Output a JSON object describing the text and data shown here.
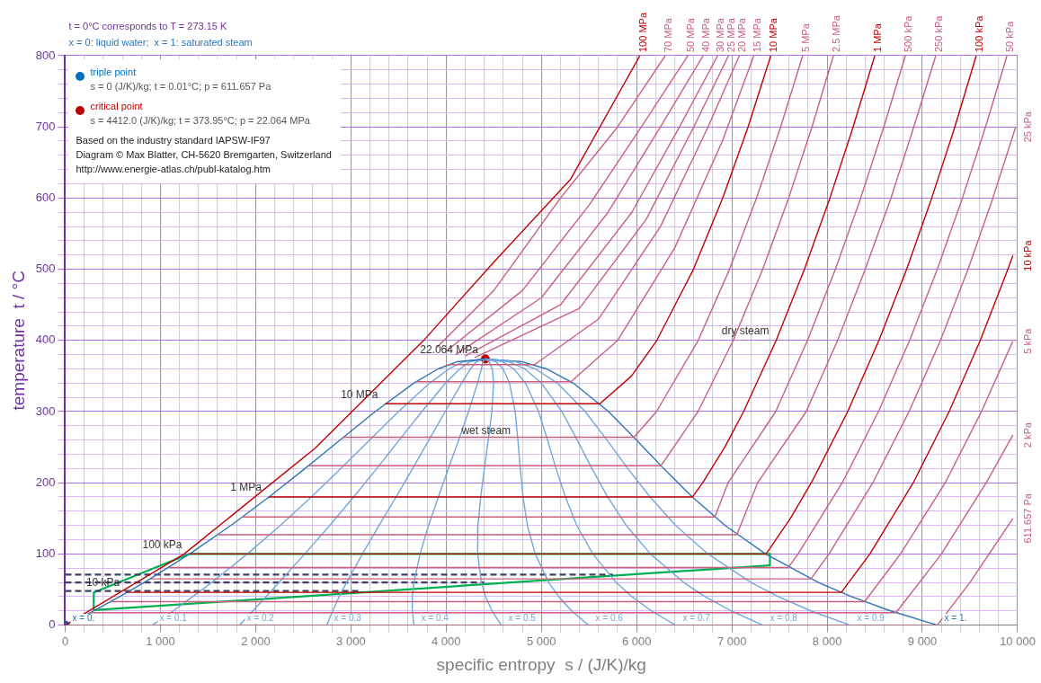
{
  "chart_data": {
    "type": "line",
    "xlabel": "specific entropy  s / (J/K)/kg",
    "ylabel": "temperature  t / °C",
    "xlim": [
      0,
      10000
    ],
    "ylim": [
      0,
      800
    ],
    "xticks": [
      0,
      {
        "value": 200,
        "label": null
      },
      {
        "value": 400,
        "label": null
      },
      {
        "value": 600,
        "label": null
      },
      {
        "value": 800,
        "label": null
      },
      {
        "value": 1000,
        "label": "1 000"
      },
      {
        "value": 1200,
        "label": null
      },
      {
        "value": 1400,
        "label": null
      },
      {
        "value": 1600,
        "label": null
      },
      {
        "value": 1800,
        "label": null
      },
      {
        "value": 2000,
        "label": "2 000"
      },
      {
        "value": 2200,
        "label": null
      },
      {
        "value": 2400,
        "label": null
      },
      {
        "value": 2600,
        "label": null
      },
      {
        "value": 2800,
        "label": null
      },
      {
        "value": 3000,
        "label": "3 000"
      },
      {
        "value": 3200,
        "label": null
      },
      {
        "value": 3400,
        "label": null
      },
      {
        "value": 3600,
        "label": null
      },
      {
        "value": 3800,
        "label": null
      },
      {
        "value": 4000,
        "label": "4 000"
      },
      {
        "value": 4200,
        "label": null
      },
      {
        "value": 4400,
        "label": null
      },
      {
        "value": 4600,
        "label": null
      },
      {
        "value": 4800,
        "label": null
      },
      {
        "value": 5000,
        "label": "5 000"
      },
      {
        "value": 5200,
        "label": null
      },
      {
        "value": 5400,
        "label": null
      },
      {
        "value": 5600,
        "label": null
      },
      {
        "value": 5800,
        "label": null
      },
      {
        "value": 6000,
        "label": "6 000"
      },
      {
        "value": 6200,
        "label": null
      },
      {
        "value": 6400,
        "label": null
      },
      {
        "value": 6600,
        "label": null
      },
      {
        "value": 6800,
        "label": null
      },
      {
        "value": 7000,
        "label": "7 000"
      },
      {
        "value": 7200,
        "label": null
      },
      {
        "value": 7400,
        "label": null
      },
      {
        "value": 7600,
        "label": null
      },
      {
        "value": 7800,
        "label": null
      },
      {
        "value": 8000,
        "label": "8 000"
      },
      {
        "value": 8200,
        "label": null
      },
      {
        "value": 8400,
        "label": null
      },
      {
        "value": 8600,
        "label": null
      },
      {
        "value": 8800,
        "label": null
      },
      {
        "value": 9000,
        "label": "9 000"
      },
      {
        "value": 9200,
        "label": null
      },
      {
        "value": 9400,
        "label": null
      },
      {
        "value": 9600,
        "label": null
      },
      {
        "value": 9800,
        "label": null
      },
      {
        "value": 10000,
        "label": "10 000"
      }
    ],
    "yticks": [
      0,
      {
        "value": 20,
        "label": null
      },
      {
        "value": 40,
        "label": null
      },
      {
        "value": 60,
        "label": null
      },
      {
        "value": 80,
        "label": null
      },
      100,
      {
        "value": 120,
        "label": null
      },
      {
        "value": 140,
        "label": null
      },
      {
        "value": 160,
        "label": null
      },
      {
        "value": 180,
        "label": null
      },
      200,
      {
        "value": 220,
        "label": null
      },
      {
        "value": 240,
        "label": null
      },
      {
        "value": 260,
        "label": null
      },
      {
        "value": 280,
        "label": null
      },
      300,
      {
        "value": 320,
        "label": null
      },
      {
        "value": 340,
        "label": null
      },
      {
        "value": 360,
        "label": null
      },
      {
        "value": 380,
        "label": null
      },
      400,
      {
        "value": 420,
        "label": null
      },
      {
        "value": 440,
        "label": null
      },
      {
        "value": 460,
        "label": null
      },
      {
        "value": 480,
        "label": null
      },
      500,
      {
        "value": 520,
        "label": null
      },
      {
        "value": 540,
        "label": null
      },
      {
        "value": 560,
        "label": null
      },
      {
        "value": 580,
        "label": null
      },
      600,
      {
        "value": 620,
        "label": null
      },
      {
        "value": 640,
        "label": null
      },
      {
        "value": 660,
        "label": null
      },
      {
        "value": 680,
        "label": null
      },
      700,
      {
        "value": 720,
        "label": null
      },
      {
        "value": 740,
        "label": null
      },
      {
        "value": 760,
        "label": null
      },
      {
        "value": 780,
        "label": null
      },
      800
    ],
    "grid": true,
    "legend": "top left",
    "annotations": [
      "t = 0°C corresponds to T = 273.15 K",
      "x = 0: liquid water;  x = 1: saturated steam",
      "s = 0 (J/K)/kg;  t = 0.01°C;  p = 611.657 Pa",
      "s = 4412.0 (J/K)/kg;  t = 373.95°C;  p = 22.064 MPa",
      "Based on the industry standard IAPSW-IF97",
      "Diagram © Max Blatter, CH-5620 Bremgarten, Switzerland",
      "http://www.energie-atlas.ch/publ-katalog.htm",
      {
        "text": "22.064 MPa",
        "x": 4412,
        "y": 373.95
      },
      {
        "text": "10 MPa",
        "x": 3360,
        "y": 311
      },
      {
        "text": "1 MPa",
        "x": 2138,
        "y": 180
      },
      {
        "text": "100 kPa",
        "x": 1303,
        "y": 100
      },
      {
        "text": "10 kPa",
        "x": 649,
        "y": 46
      },
      {
        "text": "wet steam",
        "x": 4753,
        "y": 260
      },
      {
        "text": "dry steam",
        "x": 7465,
        "y": 400
      }
    ],
    "series": [
      {
        "name": "100 MPa",
        "color": "#c00000",
        "x": [
          0,
          1250,
          2619,
          3757,
          4500,
          5304,
          6034
        ],
        "values": [
          0,
          100,
          248,
          399,
          510,
          626,
          800
        ]
      },
      {
        "name": "70 MPa",
        "color": "#c8607a",
        "x": [
          3900,
          4500,
          5200,
          5800,
          6300
        ],
        "values": [
          390,
          470,
          600,
          700,
          800
        ]
      },
      {
        "name": "50 MPa",
        "color": "#c8607a",
        "x": [
          4000,
          4800,
          5500,
          6050,
          6537
        ],
        "values": [
          385,
          470,
          590,
          700,
          800
        ]
      },
      {
        "name": "40 MPa",
        "color": "#c8607a",
        "x": [
          4100,
          5000,
          5700,
          6250,
          6698
        ],
        "values": [
          380,
          460,
          580,
          700,
          800
        ]
      },
      {
        "name": "30 MPa",
        "color": "#c8607a",
        "x": [
          4200,
          5200,
          5950,
          6450,
          6850
        ],
        "values": [
          378,
          450,
          580,
          700,
          800
        ]
      },
      {
        "name": "25 MPa",
        "color": "#c8607a",
        "x": [
          4300,
          5400,
          6100,
          6600,
          6964
        ],
        "values": [
          376,
          445,
          570,
          700,
          800
        ]
      },
      {
        "name": "20 MPa",
        "color": "#c8607a",
        "x": [
          4015,
          4928,
          5600,
          6250,
          6750,
          7078
        ],
        "values": [
          366,
          366,
          430,
          560,
          700,
          800
        ]
      },
      {
        "name": "15 MPa",
        "color": "#c8607a",
        "x": [
          3684,
          5310,
          5800,
          6400,
          6900,
          7230
        ],
        "values": [
          342,
          342,
          400,
          530,
          680,
          800
        ]
      },
      {
        "name": "10 MPa",
        "color": "#c00000",
        "x": [
          3360,
          5614,
          5946,
          6212,
          6597,
          6903,
          7170,
          7408
        ],
        "values": [
          311,
          311,
          350,
          400,
          500,
          600,
          700,
          800
        ]
      },
      {
        "name": "5 MPa",
        "color": "#c8607a",
        "x": [
          2921,
          5973,
          6208,
          6646,
          6976,
          7258,
          7512,
          7743
        ],
        "values": [
          264,
          264,
          300,
          400,
          500,
          600,
          700,
          800
        ]
      },
      {
        "name": "2.5 MPa",
        "color": "#c8607a",
        "x": [
          2554,
          6256,
          6644,
          7014,
          7324,
          7596,
          7841,
          8066
        ],
        "values": [
          224,
          224,
          300,
          400,
          500,
          600,
          700,
          800
        ]
      },
      {
        "name": "1 MPa",
        "color": "#c00000",
        "x": [
          2138,
          6585,
          6694,
          6925,
          7123,
          7465,
          7762,
          8029,
          8273,
          8500
        ],
        "values": [
          180,
          180,
          200,
          250,
          300,
          400,
          500,
          600,
          700,
          800
        ]
      },
      {
        "name": "500 kPa",
        "color": "#c8607a",
        "x": [
          1861,
          6821,
          6960,
          7460,
          7794,
          8087,
          8352,
          8595,
          8821
        ],
        "values": [
          152,
          152,
          200,
          300,
          400,
          500,
          600,
          700,
          800
        ]
      },
      {
        "name": "250 kPa",
        "color": "#c8607a",
        "x": [
          1607,
          7052,
          7270,
          7780,
          8110,
          8400,
          8670,
          8910,
          9140
        ],
        "values": [
          127,
          127,
          200,
          300,
          400,
          500,
          600,
          700,
          800
        ]
      },
      {
        "name": "100 kPa",
        "color": "#c00000",
        "x": [
          1303,
          7359,
          7614,
          7834,
          8216,
          8544,
          8835,
          9098,
          9341,
          9565
        ],
        "values": [
          100,
          100,
          150,
          200,
          300,
          400,
          500,
          600,
          700,
          800
        ]
      },
      {
        "name": "50 kPa",
        "color": "#c8607a",
        "x": [
          1091,
          7593,
          7695,
          8159,
          8539,
          8866,
          9157,
          9420,
          9663,
          9888
        ],
        "values": [
          81,
          81,
          100,
          200,
          300,
          400,
          500,
          600,
          700,
          800
        ]
      },
      {
        "name": "25 kPa",
        "color": "#c8607a",
        "x": [
          893,
          7830,
          8020,
          8480,
          8860,
          9190,
          9480,
          9740,
          9980
        ],
        "values": [
          65,
          65,
          100,
          200,
          300,
          400,
          500,
          600,
          700
        ]
      },
      {
        "name": "10 kPa",
        "color": "#c00000",
        "x": [
          649,
          8149,
          8449,
          8904,
          9281,
          9608,
          9898,
          9950
        ],
        "values": [
          46,
          46,
          100,
          200,
          300,
          400,
          500,
          519
        ]
      },
      {
        "name": "5 kPa",
        "color": "#c8607a",
        "x": [
          476,
          8394,
          8770,
          9240,
          9620,
          9950
        ],
        "values": [
          33,
          33,
          100,
          200,
          300,
          399
        ]
      },
      {
        "name": "2 kPa",
        "color": "#c8607a",
        "x": [
          261,
          8723,
          9200,
          9670,
          9950
        ],
        "values": [
          17.5,
          17.5,
          100,
          200,
          267
        ]
      },
      {
        "name": "611.657 Pa",
        "color": "#c8607a",
        "x": [
          0,
          9156,
          9500,
          9950
        ],
        "values": [
          0.01,
          0.01,
          60,
          150
        ]
      },
      {
        "name": "x = 0.",
        "color": "#2e75b6",
        "x": [
          4412,
          4111,
          3915,
          3659,
          3255,
          2885,
          2518,
          2140,
          1739,
          1307,
          831,
          572,
          297,
          0
        ],
        "values": [
          373.95,
          370,
          360,
          340,
          300,
          260,
          220,
          180,
          140,
          100,
          60,
          40,
          20,
          0.01
        ]
      },
      {
        "name": "x = 0.1",
        "color": "#6fa8dc",
        "x": [
          4412,
          4180,
          4029,
          3827,
          3500,
          3196,
          2895,
          2585,
          2258,
          1912,
          1539,
          1340,
          1134,
          916
        ],
        "values": [
          373.95,
          370,
          360,
          340,
          300,
          260,
          220,
          180,
          140,
          100,
          60,
          40,
          20,
          0.01
        ]
      },
      {
        "name": "x = 0.2",
        "color": "#6fa8dc",
        "x": [
          4412,
          4249,
          4143,
          3994,
          3745,
          3508,
          3271,
          3029,
          2777,
          2516,
          2246,
          2109,
          1971,
          1831
        ],
        "values": [
          373.95,
          370,
          360,
          340,
          300,
          260,
          220,
          180,
          140,
          100,
          60,
          40,
          20,
          0.01
        ]
      },
      {
        "name": "x = 0.3",
        "color": "#6fa8dc",
        "x": [
          4412,
          4317,
          4256,
          4162,
          3990,
          3819,
          3648,
          3474,
          3296,
          3121,
          2954,
          2877,
          2808,
          2747
        ],
        "values": [
          373.95,
          370,
          360,
          340,
          300,
          260,
          220,
          180,
          140,
          100,
          60,
          40,
          20,
          0.01
        ]
      },
      {
        "name": "x = 0.4",
        "color": "#6fa8dc",
        "x": [
          4412,
          4386,
          4370,
          4330,
          4235,
          4131,
          4024,
          3918,
          3815,
          3726,
          3662,
          3645,
          3645,
          3662
        ],
        "values": [
          373.95,
          370,
          360,
          340,
          300,
          260,
          220,
          180,
          140,
          100,
          60,
          40,
          20,
          0.01
        ]
      },
      {
        "name": "x = 0.5",
        "color": "#6fa8dc",
        "x": [
          4412,
          4455,
          4484,
          4498,
          4480,
          4442,
          4401,
          4363,
          4334,
          4331,
          4370,
          4414,
          4482,
          4578
        ],
        "values": [
          373.95,
          370,
          360,
          340,
          300,
          260,
          220,
          180,
          140,
          100,
          60,
          40,
          20,
          0.01
        ]
      },
      {
        "name": "x = 0.6",
        "color": "#6fa8dc",
        "x": [
          4412,
          4524,
          4598,
          4665,
          4725,
          4753,
          4778,
          4807,
          4853,
          4935,
          5077,
          5182,
          5318,
          5494
        ],
        "values": [
          373.95,
          370,
          360,
          340,
          300,
          260,
          220,
          180,
          140,
          100,
          60,
          40,
          20,
          0.01
        ]
      },
      {
        "name": "x = 0.7",
        "color": "#6fa8dc",
        "x": [
          4412,
          4593,
          4712,
          4833,
          4970,
          5065,
          5154,
          5252,
          5372,
          5540,
          5785,
          5950,
          6155,
          6409
        ],
        "values": [
          373.95,
          370,
          360,
          340,
          300,
          260,
          220,
          180,
          140,
          100,
          60,
          40,
          20,
          0.01
        ]
      },
      {
        "name": "x = 0.8",
        "color": "#6fa8dc",
        "x": [
          4412,
          4661,
          4825,
          5001,
          5215,
          5376,
          5531,
          5696,
          5891,
          6145,
          6493,
          6718,
          6992,
          7325
        ],
        "values": [
          373.95,
          370,
          360,
          340,
          300,
          260,
          220,
          180,
          140,
          100,
          60,
          40,
          20,
          0.01
        ]
      },
      {
        "name": "x = 0.9",
        "color": "#6fa8dc",
        "x": [
          4412,
          4730,
          4939,
          5168,
          5460,
          5688,
          5907,
          6141,
          6410,
          6749,
          7200,
          7487,
          7829,
          8240
        ],
        "values": [
          373.95,
          370,
          360,
          340,
          300,
          260,
          220,
          180,
          140,
          100,
          60,
          40,
          20,
          0.01
        ]
      },
      {
        "name": "x = 1.",
        "color": "#2e75b6",
        "x": [
          4412,
          4799,
          5053,
          5336,
          5705,
          5999,
          6284,
          6585,
          6929,
          7354,
          7908,
          8255,
          8666,
          9156
        ],
        "values": [
          373.95,
          370,
          360,
          340,
          300,
          260,
          220,
          180,
          140,
          100,
          60,
          40,
          20,
          0.01
        ]
      },
      {
        "color": "#404060",
        "line_style": "dashed",
        "x": [
          0,
          5750
        ],
        "values": [
          71,
          71
        ]
      },
      {
        "color": "#404060",
        "line_style": "dashed",
        "x": [
          0,
          4400
        ],
        "values": [
          60,
          60
        ]
      },
      {
        "color": "#404060",
        "line_style": "dashed",
        "x": [
          0,
          3100
        ],
        "values": [
          48,
          48
        ]
      },
      {
        "color": "#00b050",
        "x": [
          300,
          300,
          1300,
          7400,
          7400
        ],
        "values": [
          21,
          46,
          100,
          100,
          84
        ]
      },
      {
        "color": "#00b050",
        "x": [
          300,
          7400
        ],
        "values": [
          21,
          84
        ]
      },
      {
        "name": "triple point",
        "type": "scatter",
        "color": "#0070c0",
        "x": [
          0
        ],
        "values": [
          0.01
        ]
      },
      {
        "name": "critical point",
        "type": "scatter",
        "color": "#c00000",
        "x": [
          4412
        ],
        "values": [
          373.95
        ]
      }
    ]
  }
}
